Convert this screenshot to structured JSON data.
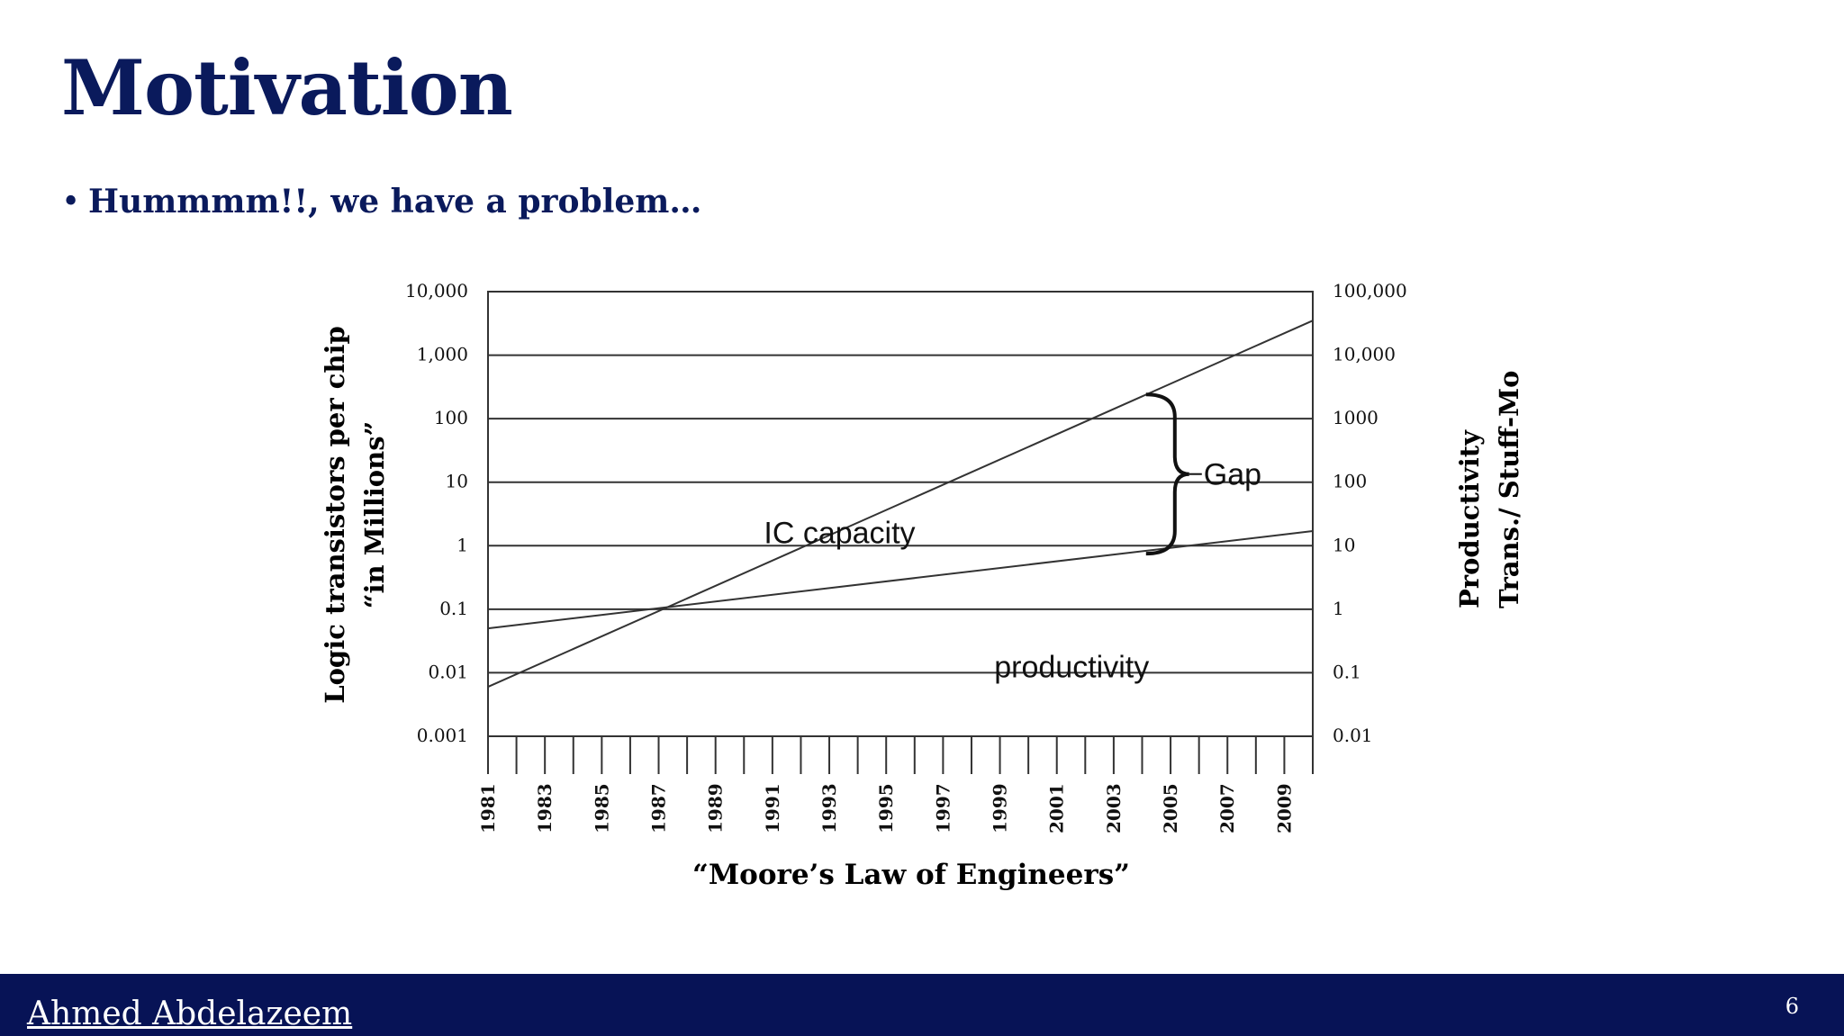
{
  "slide": {
    "title": "Motivation",
    "bullet": "Hummmm!!, we have a problem…",
    "author": "Ahmed Abdelazeem",
    "page_number": "6"
  },
  "colors": {
    "title": "#0a1a5c",
    "footer_bg": "#071356",
    "chart_line": "#333333"
  },
  "chart_data": {
    "type": "line",
    "title": "“Moore’s Law of Engineers”",
    "xlabel": "“Moore’s Law of Engineers”",
    "ylabel_left": [
      "Logic transistors per chip",
      "“in Millions”"
    ],
    "ylabel_right": [
      "Productivity",
      "Trans./ Stuff-Mo"
    ],
    "xlim": [
      1981,
      2010
    ],
    "x_ticks": [
      1981,
      1983,
      1985,
      1987,
      1989,
      1991,
      1993,
      1995,
      1997,
      1999,
      2001,
      2003,
      2005,
      2007,
      2009
    ],
    "y_left_scale": "log",
    "y_left_ticks": [
      "10,000",
      "1,000",
      "100",
      "10",
      "1",
      "0.1",
      "0.01",
      "0.001"
    ],
    "y_left_values": [
      10000,
      1000,
      100,
      10,
      1,
      0.1,
      0.01,
      0.001
    ],
    "y_right_ticks": [
      "100,000",
      "10,000",
      "1000",
      "100",
      "10",
      "1",
      "0.1",
      "0.01"
    ],
    "y_right_values": [
      100000,
      10000,
      1000,
      100,
      10,
      1,
      0.1,
      0.01
    ],
    "grid": "horizontal",
    "series": [
      {
        "name": "IC capacity",
        "axis": "left",
        "x": [
          1981,
          2010
        ],
        "values": [
          0.006,
          3500
        ]
      },
      {
        "name": "productivity",
        "axis": "right",
        "x": [
          1981,
          2010
        ],
        "values": [
          0.5,
          17
        ]
      }
    ],
    "annotations": [
      {
        "label": "IC capacity",
        "x": 1990.7,
        "y_left": 1.1
      },
      {
        "label": "productivity",
        "x": 1998.8,
        "y_left": 0.0085
      },
      {
        "label": "Gap",
        "x": 2004.2,
        "y_left_range": [
          0.75,
          240
        ]
      }
    ]
  }
}
